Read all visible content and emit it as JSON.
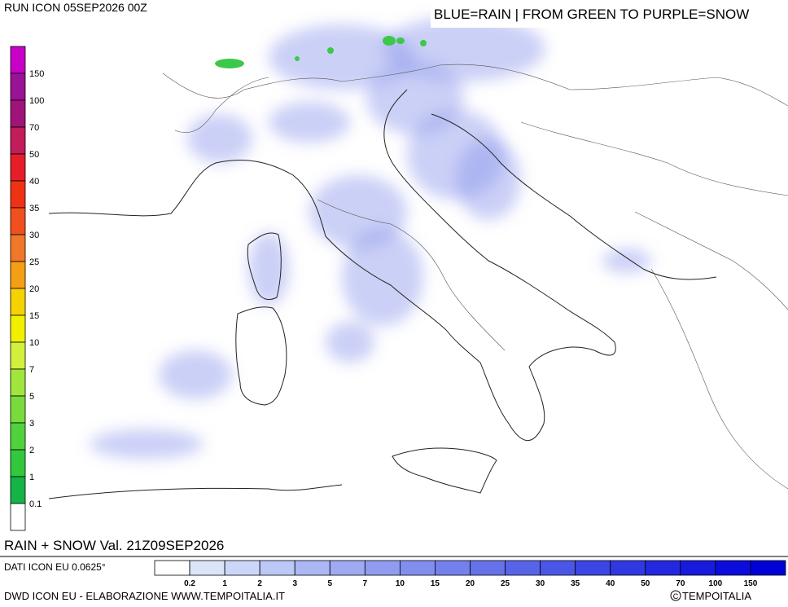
{
  "header": {
    "run": "RUN ICON 05SEP2026 00Z",
    "legend_note": "BLUE=RAIN | FROM GREEN TO PURPLE=SNOW"
  },
  "snow_scale": {
    "labels": [
      "150",
      "100",
      "70",
      "50",
      "40",
      "35",
      "30",
      "25",
      "20",
      "15",
      "10",
      "7",
      "5",
      "3",
      "2",
      "1",
      "0.1"
    ],
    "colors": [
      "#c800c8",
      "#9a1296",
      "#a0147a",
      "#c21c5a",
      "#e61e28",
      "#f03214",
      "#f0501e",
      "#f07828",
      "#f5a014",
      "#f5d200",
      "#f0f000",
      "#d2f03c",
      "#a0e63c",
      "#78dc3c",
      "#50d23c",
      "#32c83c",
      "#14b446",
      "#ffffff"
    ]
  },
  "rain_scale": {
    "labels": [
      "0.2",
      "1",
      "2",
      "3",
      "5",
      "7",
      "10",
      "15",
      "20",
      "25",
      "30",
      "35",
      "40",
      "50",
      "70",
      "100",
      "150"
    ],
    "colors": [
      "#ffffff",
      "#dce4fa",
      "#ccd6f8",
      "#bcc8f6",
      "#acb8f4",
      "#9eaaf2",
      "#909cf0",
      "#828eee",
      "#7480ec",
      "#6672ea",
      "#5864e8",
      "#4a56e6",
      "#3c46e4",
      "#3038e2",
      "#2428e0",
      "#181ade",
      "#0c0cdc",
      "#0000d8"
    ]
  },
  "footer": {
    "validity": "RAIN + SNOW Val. 21Z09SEP2026",
    "data_source": "DATI ICON EU 0.0625°",
    "credit": "DWD ICON EU - ELABORAZIONE WWW.TEMPOITALIA.IT",
    "copyright": "TEMPOITALIA"
  }
}
